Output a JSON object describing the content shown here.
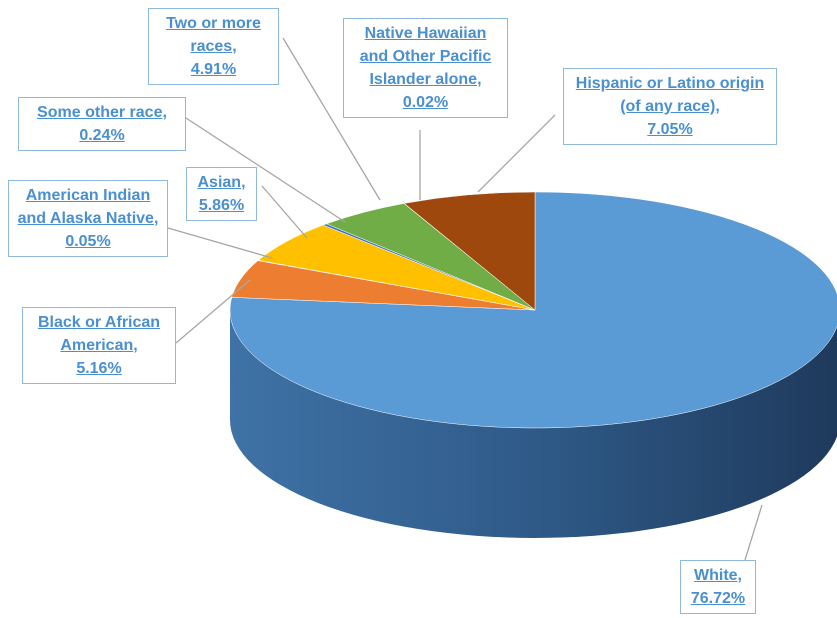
{
  "chart_data": {
    "type": "pie",
    "categories": [
      "White",
      "Black or African American",
      "American Indian and Alaska Native",
      "Asian",
      "Some other race",
      "Two or more races",
      "Native Hawaiian and Other Pacific Islander alone",
      "Hispanic or Latino origin (of any race)"
    ],
    "values": [
      76.72,
      5.16,
      0.05,
      5.86,
      0.24,
      4.91,
      0.02,
      7.05
    ],
    "value_labels": [
      "76.72%",
      "5.16%",
      "0.05%",
      "5.86%",
      "0.24%",
      "4.91%",
      "0.02%",
      "7.05%"
    ],
    "label_separator": ",",
    "colors": [
      "#5b9bd5",
      "#ed7d31",
      "#a5a5a5",
      "#ffc000",
      "#4472c4",
      "#70ad47",
      "#264478",
      "#9e480e"
    ]
  }
}
